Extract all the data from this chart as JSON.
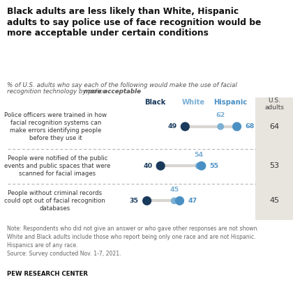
{
  "title": "Black adults are less likely than White, Hispanic\nadults to say police use of face recognition would be\nmore acceptable under certain conditions",
  "subtitle_regular": "% of U.S. adults who say each of the following would make the use of facial\nrecognition technology by police ",
  "subtitle_bold": "more acceptable",
  "rows": [
    {
      "label": "Police officers were trained in how\nfacial recognition systems can\nmake errors identifying people\nbefore they use it",
      "black": 49,
      "white": 62,
      "hispanic": 68,
      "us_adults": 64
    },
    {
      "label": "People were notified of the public\nevents and public spaces that were\nscanned for facial images",
      "black": 40,
      "white": 54,
      "hispanic": 55,
      "us_adults": 53
    },
    {
      "label": "People without criminal records\ncould opt out of facial recognition\ndatabases",
      "black": 35,
      "white": 45,
      "hispanic": 47,
      "us_adults": 45
    }
  ],
  "col_headers": [
    "Black",
    "White",
    "Hispanic",
    "U.S.\nadults"
  ],
  "color_black": "#1a3a5c",
  "color_white": "#7bafd4",
  "color_hispanic": "#4a90c4",
  "dot_line_color": "#d8d5d0",
  "background_color": "#ffffff",
  "right_col_bg": "#e8e4de",
  "note": "Note: Respondents who did not give an answer or who gave other responses are not shown.\nWhite and Black adults include those who report being only one race and are not Hispanic.\nHispanics are of any race.\nSource: Survey conducted Nov. 1-7, 2021.",
  "source_label": "PEW RESEARCH CENTER"
}
